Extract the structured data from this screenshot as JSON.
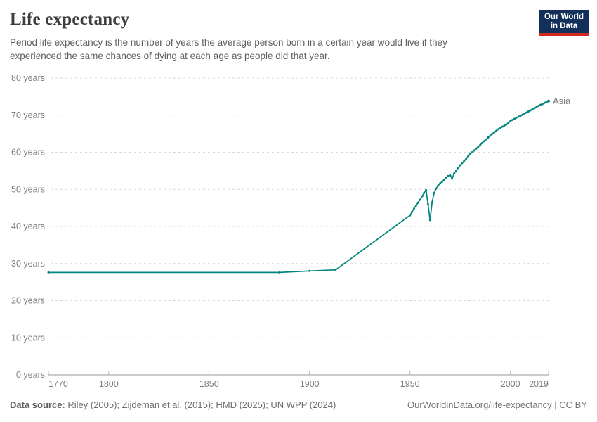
{
  "header": {
    "title": "Life expectancy",
    "subtitle": "Period life expectancy is the number of years the average person born in a certain year would live if they experienced the same chances of dying at each age as people did that year.",
    "logo": {
      "line1": "Our World",
      "line2": "in Data"
    }
  },
  "footer": {
    "source_label": "Data source:",
    "source_text": " Riley (2005); Zijdeman et al. (2015); HMD (2025); UN WPP (2024)",
    "link_text": "OurWorldinData.org/life-expectancy | CC BY"
  },
  "colors": {
    "series_teal": "#00847e",
    "gridline": "#dadada",
    "axis": "#999999",
    "tick_text": "#7d7d7d",
    "logo_bg": "#12305a",
    "logo_accent": "#d42b21"
  },
  "chart_data": {
    "type": "line",
    "title": "Life expectancy",
    "xlabel": "",
    "ylabel": "",
    "xlim": [
      1770,
      2019
    ],
    "ylim": [
      0,
      80
    ],
    "x_ticks": [
      1770,
      1800,
      1850,
      1900,
      1950,
      2000,
      2019
    ],
    "y_ticks": [
      0,
      10,
      20,
      30,
      40,
      50,
      60,
      70,
      80
    ],
    "y_tick_suffix": " years",
    "grid": "horizontal-dashed",
    "legend": "line-end-label",
    "series": [
      {
        "name": "Asia",
        "color": "#00847e",
        "points": [
          [
            1770,
            27.6
          ],
          [
            1885,
            27.6
          ],
          [
            1900,
            28
          ],
          [
            1913,
            28.3
          ],
          [
            1950,
            43.0
          ],
          [
            1951,
            43.9
          ],
          [
            1952,
            44.8
          ],
          [
            1953,
            45.6
          ],
          [
            1954,
            46.4
          ],
          [
            1955,
            47.2
          ],
          [
            1956,
            48.1
          ],
          [
            1957,
            49.0
          ],
          [
            1958,
            49.8
          ],
          [
            1959,
            46.0
          ],
          [
            1960,
            41.7
          ],
          [
            1961,
            46.5
          ],
          [
            1962,
            49.0
          ],
          [
            1963,
            50.2
          ],
          [
            1964,
            51.0
          ],
          [
            1965,
            51.6
          ],
          [
            1966,
            52.1
          ],
          [
            1967,
            52.6
          ],
          [
            1968,
            53.2
          ],
          [
            1969,
            53.6
          ],
          [
            1970,
            53.8
          ],
          [
            1971,
            52.9
          ],
          [
            1972,
            54.3
          ],
          [
            1973,
            55.0
          ],
          [
            1974,
            55.8
          ],
          [
            1975,
            56.5
          ],
          [
            1976,
            57.1
          ],
          [
            1977,
            57.7
          ],
          [
            1978,
            58.3
          ],
          [
            1979,
            58.9
          ],
          [
            1980,
            59.5
          ],
          [
            1981,
            60.0
          ],
          [
            1982,
            60.5
          ],
          [
            1983,
            61.0
          ],
          [
            1984,
            61.5
          ],
          [
            1985,
            62.0
          ],
          [
            1986,
            62.5
          ],
          [
            1987,
            63.0
          ],
          [
            1988,
            63.5
          ],
          [
            1989,
            64.0
          ],
          [
            1990,
            64.5
          ],
          [
            1991,
            65.0
          ],
          [
            1992,
            65.4
          ],
          [
            1993,
            65.8
          ],
          [
            1994,
            66.2
          ],
          [
            1995,
            66.5
          ],
          [
            1996,
            66.9
          ],
          [
            1997,
            67.2
          ],
          [
            1998,
            67.5
          ],
          [
            1999,
            67.9
          ],
          [
            2000,
            68.4
          ],
          [
            2001,
            68.7
          ],
          [
            2002,
            69.0
          ],
          [
            2003,
            69.3
          ],
          [
            2004,
            69.6
          ],
          [
            2005,
            69.8
          ],
          [
            2006,
            70.1
          ],
          [
            2007,
            70.4
          ],
          [
            2008,
            70.7
          ],
          [
            2009,
            71.0
          ],
          [
            2010,
            71.3
          ],
          [
            2011,
            71.6
          ],
          [
            2012,
            71.9
          ],
          [
            2013,
            72.2
          ],
          [
            2014,
            72.5
          ],
          [
            2015,
            72.8
          ],
          [
            2016,
            73.0
          ],
          [
            2017,
            73.3
          ],
          [
            2018,
            73.6
          ],
          [
            2019,
            73.8
          ]
        ]
      }
    ]
  }
}
